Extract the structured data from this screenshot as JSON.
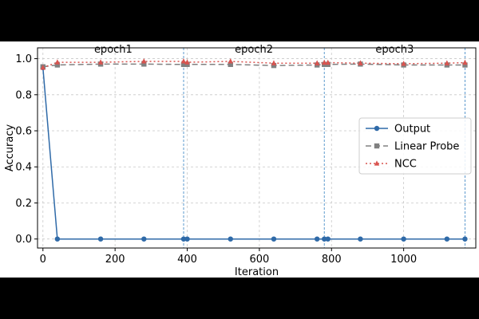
{
  "chart_data": {
    "type": "line",
    "xlabel": "Iteration",
    "ylabel": "Accuracy",
    "xlim": [
      -15,
      1200
    ],
    "ylim": [
      -0.05,
      1.06
    ],
    "xticks": [
      0,
      200,
      400,
      600,
      800,
      1000
    ],
    "yticks": [
      0.0,
      0.2,
      0.4,
      0.6,
      0.8,
      1.0
    ],
    "xtick_labels": [
      "0",
      "200",
      "400",
      "600",
      "800",
      "1000"
    ],
    "ytick_labels": [
      "0.0",
      "0.2",
      "0.4",
      "0.6",
      "0.8",
      "1.0"
    ],
    "grid": true,
    "legend_position": "center-right",
    "epoch_boundaries": [
      390,
      780,
      1170
    ],
    "epoch_labels": [
      {
        "text": "epoch1",
        "x": 195
      },
      {
        "text": "epoch2",
        "x": 585
      },
      {
        "text": "epoch3",
        "x": 975
      }
    ],
    "x": [
      0,
      40,
      160,
      280,
      390,
      400,
      520,
      640,
      760,
      780,
      790,
      880,
      1000,
      1120,
      1170
    ],
    "series": [
      {
        "name": "Output",
        "color": "#2f6aa8",
        "dash": "",
        "marker": "circle",
        "values": [
          0.95,
          0.0,
          0.0,
          0.0,
          0.0,
          0.0,
          0.0,
          0.0,
          0.0,
          0.0,
          0.0,
          0.0,
          0.0,
          0.0,
          0.0
        ]
      },
      {
        "name": "Linear Probe",
        "color": "#808080",
        "dash": "7,4",
        "marker": "square",
        "values": [
          0.955,
          0.965,
          0.97,
          0.97,
          0.968,
          0.968,
          0.968,
          0.962,
          0.965,
          0.968,
          0.968,
          0.97,
          0.965,
          0.965,
          0.965
        ]
      },
      {
        "name": "NCC",
        "color": "#d9534f",
        "dash": "2,3",
        "marker": "triangle",
        "values": [
          0.95,
          0.98,
          0.98,
          0.985,
          0.985,
          0.98,
          0.985,
          0.975,
          0.975,
          0.978,
          0.978,
          0.975,
          0.972,
          0.975,
          0.978
        ]
      }
    ]
  }
}
